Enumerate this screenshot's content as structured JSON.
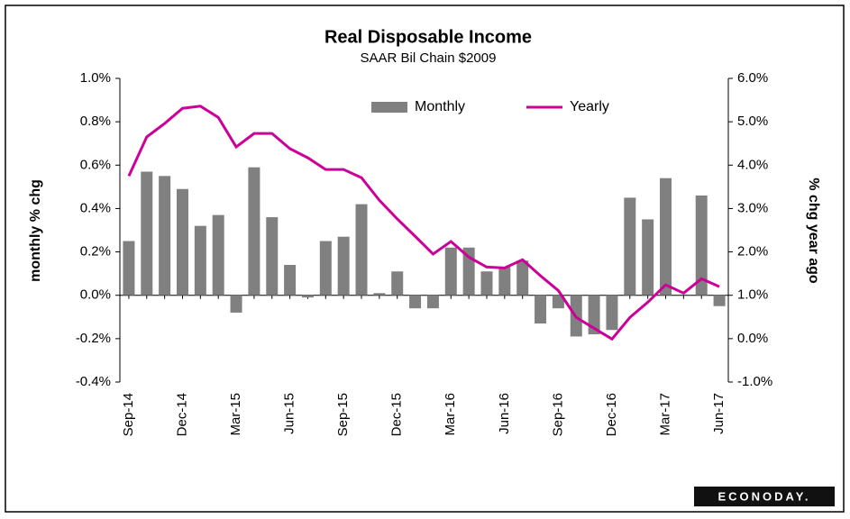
{
  "chart_data": {
    "type": "bar-line",
    "title": "Real Disposable  Income",
    "subtitle": "SAAR Bil Chain $2009",
    "y_label": "monthly % chg",
    "y2_label": "% chg year ago",
    "logo": "ECONODAY.",
    "categories": [
      "Sep-14",
      null,
      null,
      "Dec-14",
      null,
      null,
      "Mar-15",
      null,
      null,
      "Jun-15",
      null,
      null,
      "Sep-15",
      null,
      null,
      "Dec-15",
      null,
      null,
      "Mar-16",
      null,
      null,
      "Jun-16",
      null,
      null,
      "Sep-16",
      null,
      null,
      "Dec-16",
      null,
      null,
      "Mar-17",
      null,
      null,
      "Jun-17"
    ],
    "series": [
      {
        "name": "Monthly",
        "type": "bar",
        "color": "#808080",
        "axis": "y",
        "values": [
          0.25,
          0.57,
          0.55,
          0.49,
          0.32,
          0.37,
          -0.08,
          0.59,
          0.36,
          0.14,
          -0.01,
          0.25,
          0.27,
          0.42,
          0.01,
          0.11,
          -0.06,
          -0.06,
          0.22,
          0.22,
          0.11,
          0.13,
          0.16,
          -0.13,
          -0.06,
          -0.19,
          -0.18,
          -0.16,
          0.45,
          0.35,
          0.54,
          0.0,
          0.46,
          -0.05
        ]
      },
      {
        "name": "Yearly",
        "type": "line",
        "color": "#cc0099",
        "axis": "y2",
        "values": [
          3.75,
          4.65,
          4.96,
          5.31,
          5.36,
          5.1,
          4.42,
          4.73,
          4.73,
          4.38,
          4.17,
          3.9,
          3.9,
          3.71,
          3.19,
          2.76,
          2.36,
          1.95,
          2.24,
          1.88,
          1.65,
          1.63,
          1.82,
          1.45,
          1.11,
          0.49,
          0.24,
          -0.01,
          0.49,
          0.84,
          1.24,
          1.05,
          1.38,
          1.2
        ]
      }
    ],
    "ylim": [
      -0.4,
      1.0
    ],
    "yticks": [
      {
        "value": -0.4,
        "label": "-0.4%"
      },
      {
        "value": -0.2,
        "label": "-0.2%"
      },
      {
        "value": 0.0,
        "label": "0.0%"
      },
      {
        "value": 0.2,
        "label": "0.2%"
      },
      {
        "value": 0.4,
        "label": "0.4%"
      },
      {
        "value": 0.6,
        "label": "0.6%"
      },
      {
        "value": 0.8,
        "label": "0.8%"
      },
      {
        "value": 1.0,
        "label": "1.0%"
      }
    ],
    "y2lim": [
      -1.0,
      6.0
    ],
    "y2ticks": [
      {
        "value": -1.0,
        "label": "-1.0%"
      },
      {
        "value": 0.0,
        "label": "0.0%"
      },
      {
        "value": 1.0,
        "label": "1.0%"
      },
      {
        "value": 2.0,
        "label": "2.0%"
      },
      {
        "value": 3.0,
        "label": "3.0%"
      },
      {
        "value": 4.0,
        "label": "4.0%"
      },
      {
        "value": 5.0,
        "label": "5.0%"
      },
      {
        "value": 6.0,
        "label": "6.0%"
      }
    ],
    "grid": false
  }
}
